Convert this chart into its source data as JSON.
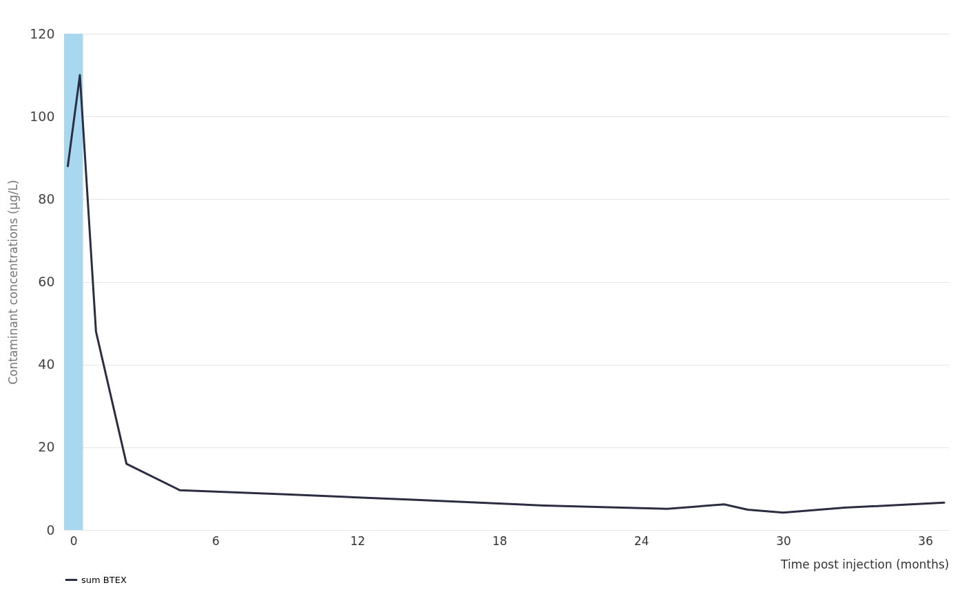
{
  "chart_data": {
    "type": "line",
    "xlabel": "Time post injection (months)",
    "ylabel": "Contaminant concentrations (µg/L)",
    "xlim": [
      -0.4,
      37
    ],
    "ylim": [
      0,
      120
    ],
    "xticks": [
      0,
      6,
      12,
      18,
      24,
      30,
      36
    ],
    "yticks": [
      0,
      20,
      40,
      60,
      80,
      100,
      120
    ],
    "series": [
      {
        "name": "sum BTEX",
        "color": "#2b2d42",
        "x": [
          -0.24,
          0.27,
          0.95,
          2.24,
          4.5,
          9.0,
          14.5,
          19.9,
          25.1,
          27.5,
          28.5,
          30.0,
          32.6,
          36.8
        ],
        "values": [
          88,
          110,
          48,
          16,
          9.6,
          8.6,
          7.3,
          5.9,
          5.1,
          6.2,
          4.9,
          4.2,
          5.4,
          6.6
        ]
      }
    ],
    "bands": [
      {
        "axis": "x",
        "from": -0.4,
        "to": 0.4,
        "color": "#a8d8f0"
      }
    ],
    "grid": "y",
    "legend": "bottom",
    "marker": "none",
    "line_style": "solid"
  }
}
